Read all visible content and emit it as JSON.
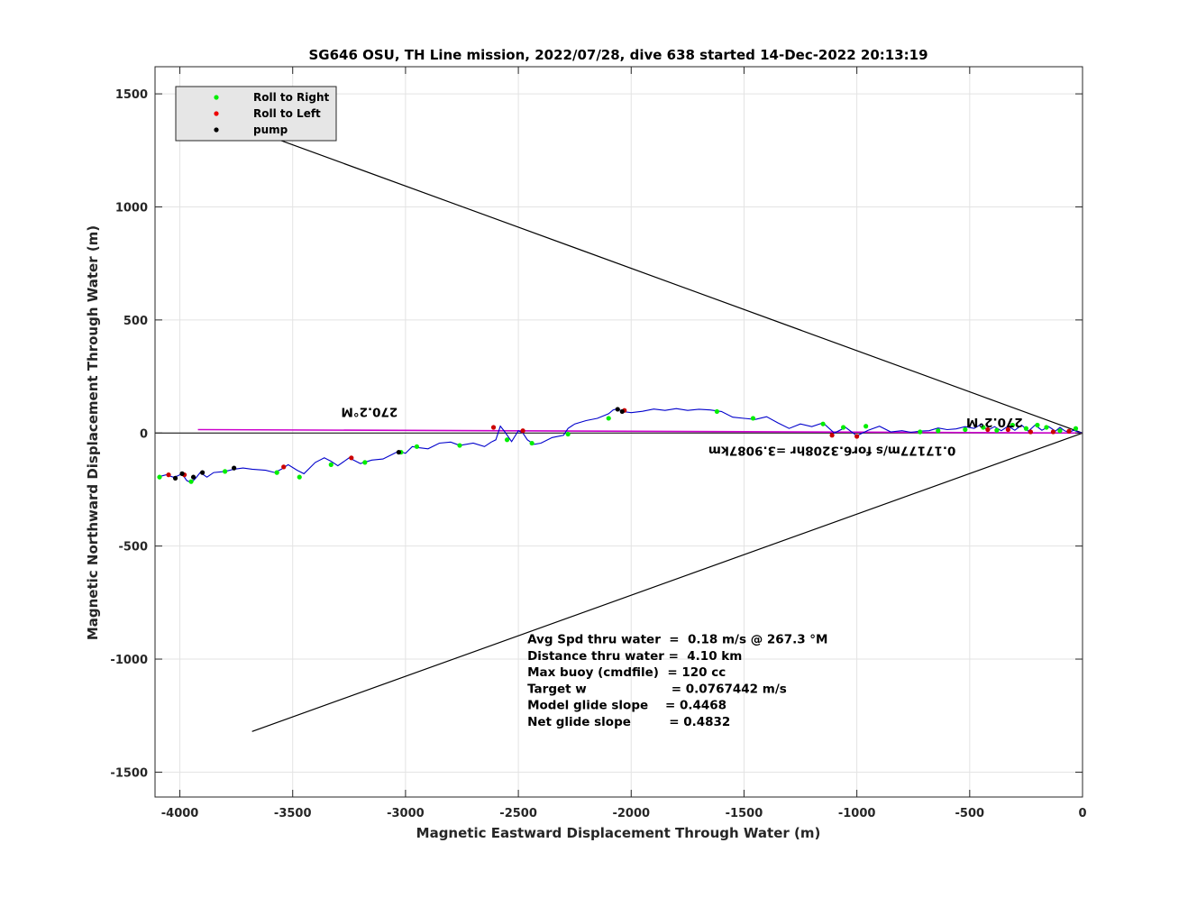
{
  "chart_data": {
    "type": "line",
    "title": "SG646 OSU, TH Line mission, 2022/07/28, dive 638 started 14-Dec-2022 20:13:19",
    "xlabel": "Magnetic Eastward Displacement Through Water (m)",
    "ylabel": "Magnetic Northward Displacement Through Water (m)",
    "xlim": [
      -4110,
      0
    ],
    "ylim": [
      -1610,
      1620
    ],
    "xticks": [
      -4000,
      -3500,
      -3000,
      -2500,
      -2000,
      -1500,
      -1000,
      -500,
      0
    ],
    "yticks": [
      -1500,
      -1000,
      -500,
      0,
      500,
      1000,
      1500
    ],
    "grid": true,
    "legend_position": "top-left",
    "legend": [
      {
        "label": "Roll to Right",
        "color": "#00ee00"
      },
      {
        "label": "Roll to Left",
        "color": "#ee0000"
      },
      {
        "label": "pump",
        "color": "#000000"
      }
    ],
    "track": {
      "color": "#0000cc",
      "x": [
        0,
        -20,
        -40,
        -60,
        -80,
        -100,
        -120,
        -150,
        -180,
        -210,
        -240,
        -270,
        -300,
        -330,
        -360,
        -390,
        -420,
        -450,
        -480,
        -520,
        -560,
        -600,
        -640,
        -680,
        -720,
        -760,
        -800,
        -850,
        -900,
        -950,
        -1000,
        -1050,
        -1100,
        -1150,
        -1200,
        -1250,
        -1300,
        -1350,
        -1400,
        -1450,
        -1500,
        -1550,
        -1600,
        -1650,
        -1700,
        -1750,
        -1800,
        -1850,
        -1900,
        -1950,
        -2000,
        -2040,
        -2060,
        -2080,
        -2100,
        -2150,
        -2200,
        -2250,
        -2280,
        -2300,
        -2350,
        -2400,
        -2430,
        -2460,
        -2480,
        -2500,
        -2530,
        -2560,
        -2580,
        -2600,
        -2620,
        -2650,
        -2700,
        -2760,
        -2800,
        -2850,
        -2900,
        -2940,
        -2970,
        -3000,
        -3030,
        -3060,
        -3100,
        -3150,
        -3200,
        -3250,
        -3300,
        -3330,
        -3360,
        -3400,
        -3450,
        -3480,
        -3520,
        -3550,
        -3580,
        -3620,
        -3680,
        -3720,
        -3760,
        -3800,
        -3850,
        -3880,
        -3910,
        -3930,
        -3950,
        -3970,
        -3990,
        -4010,
        -4030,
        -4060,
        -4100
      ],
      "y": [
        0,
        5,
        12,
        2,
        10,
        25,
        8,
        28,
        12,
        35,
        8,
        35,
        12,
        30,
        10,
        28,
        12,
        38,
        20,
        28,
        18,
        15,
        22,
        10,
        8,
        3,
        10,
        5,
        30,
        12,
        -12,
        25,
        0,
        45,
        28,
        40,
        20,
        45,
        72,
        60,
        65,
        70,
        95,
        102,
        105,
        100,
        108,
        100,
        106,
        96,
        90,
        95,
        108,
        102,
        85,
        65,
        55,
        40,
        20,
        -10,
        -20,
        -45,
        -50,
        -30,
        0,
        10,
        -38,
        5,
        30,
        -30,
        -40,
        -60,
        -45,
        -55,
        -40,
        -45,
        -70,
        -65,
        -60,
        -90,
        -80,
        -95,
        -115,
        -120,
        -135,
        -110,
        -145,
        -125,
        -110,
        -130,
        -180,
        -165,
        -140,
        -160,
        -175,
        -165,
        -160,
        -155,
        -160,
        -170,
        -175,
        -195,
        -175,
        -200,
        -220,
        -210,
        -180,
        -190,
        -195,
        -185,
        -195
      ]
    },
    "rolls_right": {
      "x": [
        -30,
        -100,
        -160,
        -200,
        -250,
        -310,
        -380,
        -440,
        -520,
        -640,
        -720,
        -960,
        -1060,
        -1150,
        -1460,
        -1620,
        -2100,
        -2280,
        -2440,
        -2550,
        -2760,
        -2950,
        -3020,
        -3180,
        -3330,
        -3470,
        -3570,
        -3800,
        -3950,
        -4090
      ],
      "y": [
        20,
        10,
        25,
        35,
        20,
        35,
        12,
        25,
        15,
        10,
        5,
        30,
        25,
        40,
        65,
        95,
        65,
        -5,
        -45,
        -30,
        -55,
        -60,
        -85,
        -130,
        -140,
        -195,
        -175,
        -170,
        -215,
        -195
      ]
    },
    "rolls_left": {
      "x": [
        -60,
        -130,
        -230,
        -330,
        -420,
        -1000,
        -1110,
        -2030,
        -2480,
        -2610,
        -3240,
        -3540,
        -3980,
        -4050
      ],
      "y": [
        8,
        5,
        5,
        15,
        15,
        -15,
        -10,
        100,
        10,
        25,
        -110,
        -150,
        -185,
        -185
      ],
      "color": "#cc0000"
    },
    "pump_points": {
      "x": [
        -2040,
        -2060,
        -3030,
        -3760,
        -3900,
        -3940,
        -3990,
        -4020
      ],
      "y": [
        95,
        105,
        -85,
        -155,
        -175,
        -195,
        -180,
        -200
      ]
    },
    "heading_line": {
      "x": [
        -3920,
        0
      ],
      "y": [
        15,
        0
      ],
      "color": "#cc00cc"
    },
    "cone_lines": [
      {
        "x": [
          0,
          -3680
        ],
        "y": [
          0,
          1340
        ]
      },
      {
        "x": [
          0,
          -3680
        ],
        "y": [
          0,
          -1320
        ]
      }
    ],
    "annotations": [
      {
        "text": "270.2°M",
        "x": -3160,
        "y": 110,
        "rotated": true
      },
      {
        "text": "270.2°M",
        "x": -390,
        "y": 65,
        "rotated": true
      },
      {
        "text": "0.17177m/s for6.3208hr =3.9087km",
        "x": -1110,
        "y": -60,
        "rotated": true
      }
    ],
    "stats": [
      "Avg Spd thru water  =  0.18 m/s @ 267.3 °M",
      "Distance thru water =  4.10 km",
      "Max buoy (cmdfile)  = 120 cc",
      "Target w                    = 0.0767442 m/s",
      "Model glide slope    = 0.4468",
      "Net glide slope         = 0.4832"
    ],
    "stats_position": {
      "x": -2460,
      "y": -930
    }
  }
}
